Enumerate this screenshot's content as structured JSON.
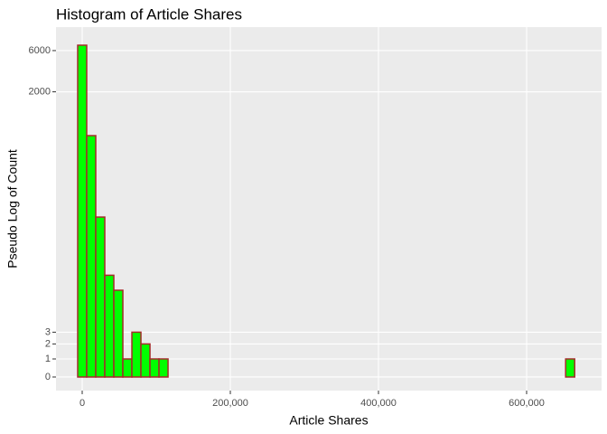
{
  "chart_data": {
    "type": "histogram",
    "title": "Histogram of Article Shares",
    "x_label": "Article Shares",
    "y_label": "Pseudo Log of Count",
    "y_scale": "pseudo_log",
    "bins": [
      -6100,
      6100,
      18300,
      30500,
      42700,
      54900,
      67100,
      79300,
      91500,
      103700,
      115900,
      128100,
      140300,
      152500,
      164700,
      176900,
      189100,
      201300,
      213500,
      225700,
      237900,
      250100,
      262300,
      274500,
      286700,
      298900,
      311100,
      323300,
      335500,
      347700,
      359900,
      372100,
      384300,
      396500,
      408700,
      420900,
      433100,
      445300,
      457500,
      469700,
      481900,
      494100,
      506300,
      518500,
      530700,
      542900,
      555100,
      567300,
      579500,
      591700,
      603900,
      616100,
      628300,
      640500,
      652700,
      664900
    ],
    "values": [
      6925,
      622,
      71,
      15,
      10,
      1,
      3,
      2,
      1,
      1,
      0,
      0,
      0,
      0,
      0,
      0,
      0,
      0,
      0,
      0,
      0,
      0,
      0,
      0,
      0,
      0,
      0,
      0,
      0,
      0,
      0,
      0,
      0,
      0,
      0,
      0,
      0,
      0,
      0,
      0,
      0,
      0,
      0,
      0,
      0,
      0,
      0,
      0,
      0,
      0,
      0,
      0,
      0,
      0,
      1
    ],
    "color": "#00ff00",
    "edge_color": "#a52a2a",
    "xlim": [
      -35366,
      701220
    ],
    "xticks": [
      0,
      {
        "value": 200000,
        "label": "200,000"
      },
      {
        "value": 400000,
        "label": "400,000"
      },
      {
        "value": 600000,
        "label": "600,000"
      }
    ],
    "ylim": [
      -0.74,
      11215
    ],
    "yticks": [
      0,
      1,
      2,
      3,
      2000,
      6000
    ],
    "grid": true
  }
}
